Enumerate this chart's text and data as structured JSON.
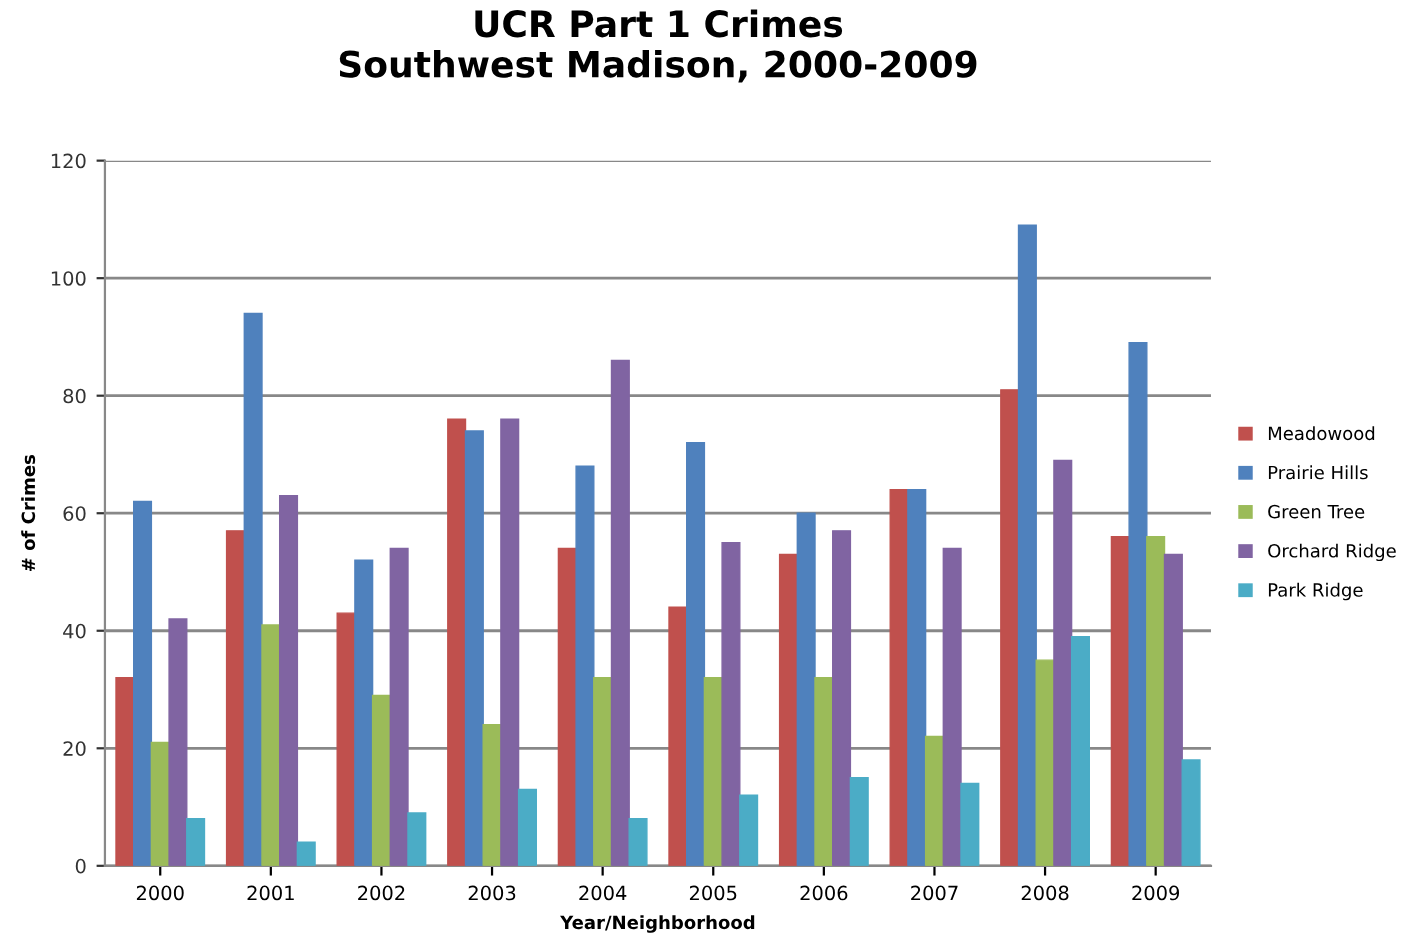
{
  "chart_data": {
    "type": "bar",
    "title": "UCR Part 1 Crimes\nSouthwest Madison, 2000-2009",
    "xlabel": "Year/Neighborhood",
    "ylabel": "# of Crimes",
    "categories": [
      "2000",
      "2001",
      "2002",
      "2003",
      "2004",
      "2005",
      "2006",
      "2007",
      "2008",
      "2009"
    ],
    "series": [
      {
        "name": "Meadowood",
        "color": "#c0504d",
        "values": [
          32,
          57,
          43,
          76,
          54,
          44,
          53,
          64,
          81,
          56
        ]
      },
      {
        "name": "Prairie Hills",
        "color": "#4f81bd",
        "values": [
          62,
          94,
          52,
          74,
          68,
          72,
          60,
          64,
          109,
          89
        ]
      },
      {
        "name": "Green Tree",
        "color": "#9bbb59",
        "values": [
          21,
          41,
          29,
          24,
          32,
          32,
          32,
          22,
          35,
          56
        ]
      },
      {
        "name": "Orchard Ridge",
        "color": "#8064a2",
        "values": [
          42,
          63,
          54,
          76,
          86,
          55,
          57,
          54,
          69,
          53
        ]
      },
      {
        "name": "Park Ridge",
        "color": "#4bacc6",
        "values": [
          8,
          4,
          9,
          13,
          8,
          12,
          15,
          14,
          39,
          18
        ]
      }
    ],
    "ylim": [
      0,
      120
    ],
    "yticks": [
      0,
      20,
      40,
      60,
      80,
      100,
      120
    ],
    "grid": "y",
    "legend": "right"
  }
}
